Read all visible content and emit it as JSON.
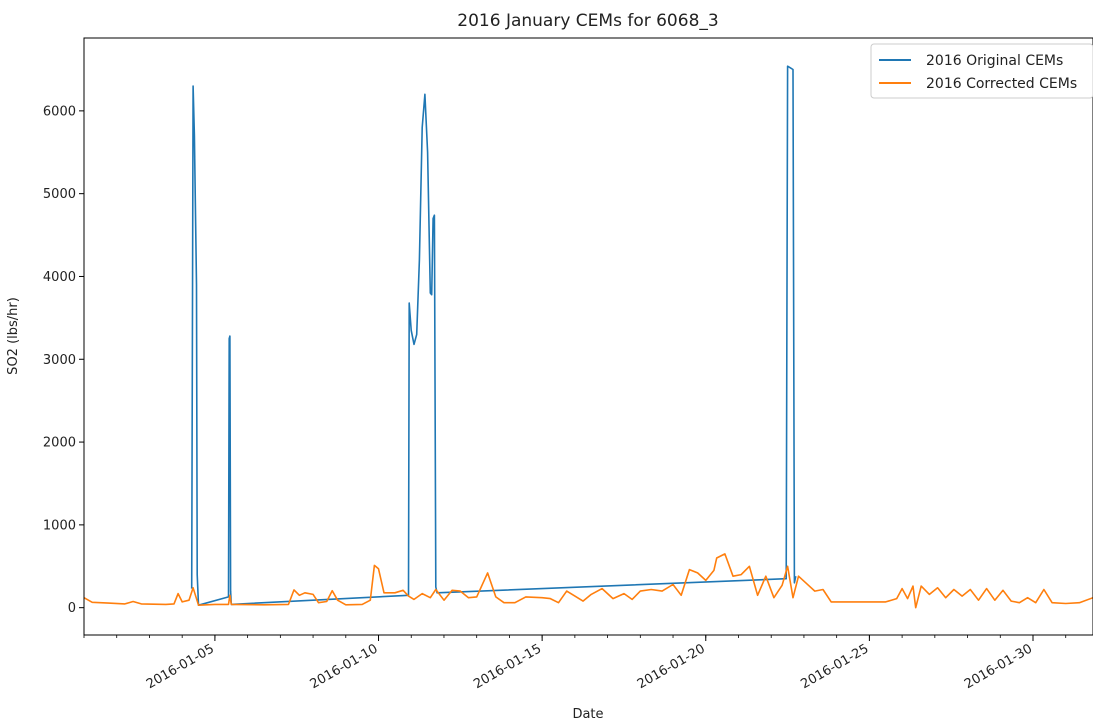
{
  "chart_data": {
    "type": "line",
    "title": "2016 January CEMs for 6068_3",
    "xlabel": "Date",
    "ylabel": "SO2 (lbs/hr)",
    "x_type": "date",
    "xlim": [
      "2016-01-01",
      "2016-01-31 20:00"
    ],
    "ylim": [
      -330,
      6880
    ],
    "x_ticks": [
      "2016-01-05",
      "2016-01-10",
      "2016-01-15",
      "2016-01-20",
      "2016-01-25",
      "2016-01-30"
    ],
    "y_ticks": [
      0,
      1000,
      2000,
      3000,
      4000,
      5000,
      6000
    ],
    "grid": false,
    "legend": "upper right",
    "colors": {
      "original": "#1f77b4",
      "corrected": "#ff7f0e"
    },
    "series": [
      {
        "name": "2016 Original CEMs",
        "color": "#1f77b4",
        "points": [
          [
            "2016-01-04 07:00",
            230
          ],
          [
            "2016-01-04 08:00",
            6300
          ],
          [
            "2016-01-04 09:00",
            5700
          ],
          [
            "2016-01-04 10:30",
            3900
          ],
          [
            "2016-01-04 11:00",
            400
          ],
          [
            "2016-01-04 12:00",
            30
          ],
          [
            "2016-01-05 10:00",
            130
          ],
          [
            "2016-01-05 10:30",
            3250
          ],
          [
            "2016-01-05 11:00",
            3280
          ],
          [
            "2016-01-05 11:30",
            200
          ],
          [
            "2016-01-05 12:00",
            40
          ],
          [
            "2016-01-10 22:00",
            150
          ],
          [
            "2016-01-10 22:30",
            3680
          ],
          [
            "2016-01-11 00:00",
            3350
          ],
          [
            "2016-01-11 02:00",
            3180
          ],
          [
            "2016-01-11 04:00",
            3300
          ],
          [
            "2016-01-11 06:00",
            4200
          ],
          [
            "2016-01-11 08:00",
            5800
          ],
          [
            "2016-01-11 10:00",
            6200
          ],
          [
            "2016-01-11 12:00",
            5500
          ],
          [
            "2016-01-11 14:00",
            3800
          ],
          [
            "2016-01-11 15:00",
            3780
          ],
          [
            "2016-01-11 16:00",
            4700
          ],
          [
            "2016-01-11 17:00",
            4740
          ],
          [
            "2016-01-11 18:00",
            250
          ],
          [
            "2016-01-11 19:00",
            180
          ],
          [
            "2016-01-22 11:00",
            350
          ],
          [
            "2016-01-22 12:00",
            6540
          ],
          [
            "2016-01-22 14:00",
            6520
          ],
          [
            "2016-01-22 16:00",
            6500
          ],
          [
            "2016-01-22 17:00",
            300
          ],
          [
            "2016-01-22 18:00",
            380
          ]
        ]
      },
      {
        "name": "2016 Corrected CEMs",
        "color": "#ff7f0e",
        "points": [
          [
            "2016-01-01 00:00",
            120
          ],
          [
            "2016-01-01 06:00",
            65
          ],
          [
            "2016-01-01 18:00",
            55
          ],
          [
            "2016-01-02 06:00",
            45
          ],
          [
            "2016-01-02 12:00",
            75
          ],
          [
            "2016-01-02 18:00",
            45
          ],
          [
            "2016-01-03 12:00",
            40
          ],
          [
            "2016-01-03 18:00",
            45
          ],
          [
            "2016-01-03 21:00",
            170
          ],
          [
            "2016-01-04 00:00",
            70
          ],
          [
            "2016-01-04 05:00",
            90
          ],
          [
            "2016-01-04 08:00",
            240
          ],
          [
            "2016-01-04 12:00",
            30
          ],
          [
            "2016-01-05 00:00",
            40
          ],
          [
            "2016-01-05 10:00",
            40
          ],
          [
            "2016-01-05 11:00",
            150
          ],
          [
            "2016-01-05 12:00",
            40
          ],
          [
            "2016-01-06 12:00",
            35
          ],
          [
            "2016-01-07 06:00",
            40
          ],
          [
            "2016-01-07 10:00",
            215
          ],
          [
            "2016-01-07 14:00",
            150
          ],
          [
            "2016-01-07 18:00",
            180
          ],
          [
            "2016-01-08 00:00",
            160
          ],
          [
            "2016-01-08 04:00",
            60
          ],
          [
            "2016-01-08 10:00",
            75
          ],
          [
            "2016-01-08 14:00",
            205
          ],
          [
            "2016-01-08 18:00",
            90
          ],
          [
            "2016-01-09 00:00",
            35
          ],
          [
            "2016-01-09 12:00",
            40
          ],
          [
            "2016-01-09 18:00",
            90
          ],
          [
            "2016-01-09 21:00",
            510
          ],
          [
            "2016-01-10 00:00",
            470
          ],
          [
            "2016-01-10 04:00",
            180
          ],
          [
            "2016-01-10 12:00",
            180
          ],
          [
            "2016-01-10 18:00",
            210
          ],
          [
            "2016-01-10 22:00",
            140
          ],
          [
            "2016-01-11 02:00",
            100
          ],
          [
            "2016-01-11 08:00",
            170
          ],
          [
            "2016-01-11 14:00",
            120
          ],
          [
            "2016-01-11 18:00",
            220
          ],
          [
            "2016-01-12 00:00",
            90
          ],
          [
            "2016-01-12 06:00",
            210
          ],
          [
            "2016-01-12 12:00",
            200
          ],
          [
            "2016-01-12 18:00",
            120
          ],
          [
            "2016-01-13 00:00",
            130
          ],
          [
            "2016-01-13 08:00",
            420
          ],
          [
            "2016-01-13 14:00",
            130
          ],
          [
            "2016-01-13 20:00",
            60
          ],
          [
            "2016-01-14 04:00",
            60
          ],
          [
            "2016-01-14 12:00",
            130
          ],
          [
            "2016-01-15 00:00",
            120
          ],
          [
            "2016-01-15 06:00",
            110
          ],
          [
            "2016-01-15 12:00",
            60
          ],
          [
            "2016-01-15 18:00",
            200
          ],
          [
            "2016-01-16 00:00",
            140
          ],
          [
            "2016-01-16 06:00",
            80
          ],
          [
            "2016-01-16 12:00",
            160
          ],
          [
            "2016-01-16 20:00",
            230
          ],
          [
            "2016-01-17 04:00",
            110
          ],
          [
            "2016-01-17 12:00",
            170
          ],
          [
            "2016-01-17 18:00",
            100
          ],
          [
            "2016-01-18 00:00",
            200
          ],
          [
            "2016-01-18 08:00",
            220
          ],
          [
            "2016-01-18 16:00",
            200
          ],
          [
            "2016-01-19 00:00",
            280
          ],
          [
            "2016-01-19 06:00",
            150
          ],
          [
            "2016-01-19 12:00",
            460
          ],
          [
            "2016-01-19 18:00",
            420
          ],
          [
            "2016-01-20 00:00",
            330
          ],
          [
            "2016-01-20 06:00",
            450
          ],
          [
            "2016-01-20 08:00",
            600
          ],
          [
            "2016-01-20 14:00",
            650
          ],
          [
            "2016-01-20 20:00",
            380
          ],
          [
            "2016-01-21 02:00",
            400
          ],
          [
            "2016-01-21 08:00",
            500
          ],
          [
            "2016-01-21 14:00",
            150
          ],
          [
            "2016-01-21 20:00",
            380
          ],
          [
            "2016-01-22 02:00",
            120
          ],
          [
            "2016-01-22 08:00",
            270
          ],
          [
            "2016-01-22 12:00",
            500
          ],
          [
            "2016-01-22 16:00",
            120
          ],
          [
            "2016-01-22 20:00",
            380
          ],
          [
            "2016-01-23 02:00",
            290
          ],
          [
            "2016-01-23 08:00",
            200
          ],
          [
            "2016-01-23 14:00",
            220
          ],
          [
            "2016-01-23 20:00",
            70
          ],
          [
            "2016-01-24 12:00",
            70
          ],
          [
            "2016-01-25 12:00",
            70
          ],
          [
            "2016-01-25 20:00",
            110
          ],
          [
            "2016-01-26 00:00",
            230
          ],
          [
            "2016-01-26 04:00",
            110
          ],
          [
            "2016-01-26 08:00",
            260
          ],
          [
            "2016-01-26 10:00",
            0
          ],
          [
            "2016-01-26 14:00",
            260
          ],
          [
            "2016-01-26 20:00",
            160
          ],
          [
            "2016-01-27 02:00",
            240
          ],
          [
            "2016-01-27 08:00",
            120
          ],
          [
            "2016-01-27 14:00",
            220
          ],
          [
            "2016-01-27 20:00",
            140
          ],
          [
            "2016-01-28 02:00",
            220
          ],
          [
            "2016-01-28 08:00",
            90
          ],
          [
            "2016-01-28 14:00",
            230
          ],
          [
            "2016-01-28 20:00",
            90
          ],
          [
            "2016-01-29 02:00",
            210
          ],
          [
            "2016-01-29 08:00",
            80
          ],
          [
            "2016-01-29 14:00",
            60
          ],
          [
            "2016-01-29 20:00",
            120
          ],
          [
            "2016-01-30 02:00",
            60
          ],
          [
            "2016-01-30 08:00",
            220
          ],
          [
            "2016-01-30 14:00",
            60
          ],
          [
            "2016-01-31 00:00",
            50
          ],
          [
            "2016-01-31 10:00",
            60
          ],
          [
            "2016-01-31 20:00",
            120
          ]
        ]
      }
    ]
  }
}
